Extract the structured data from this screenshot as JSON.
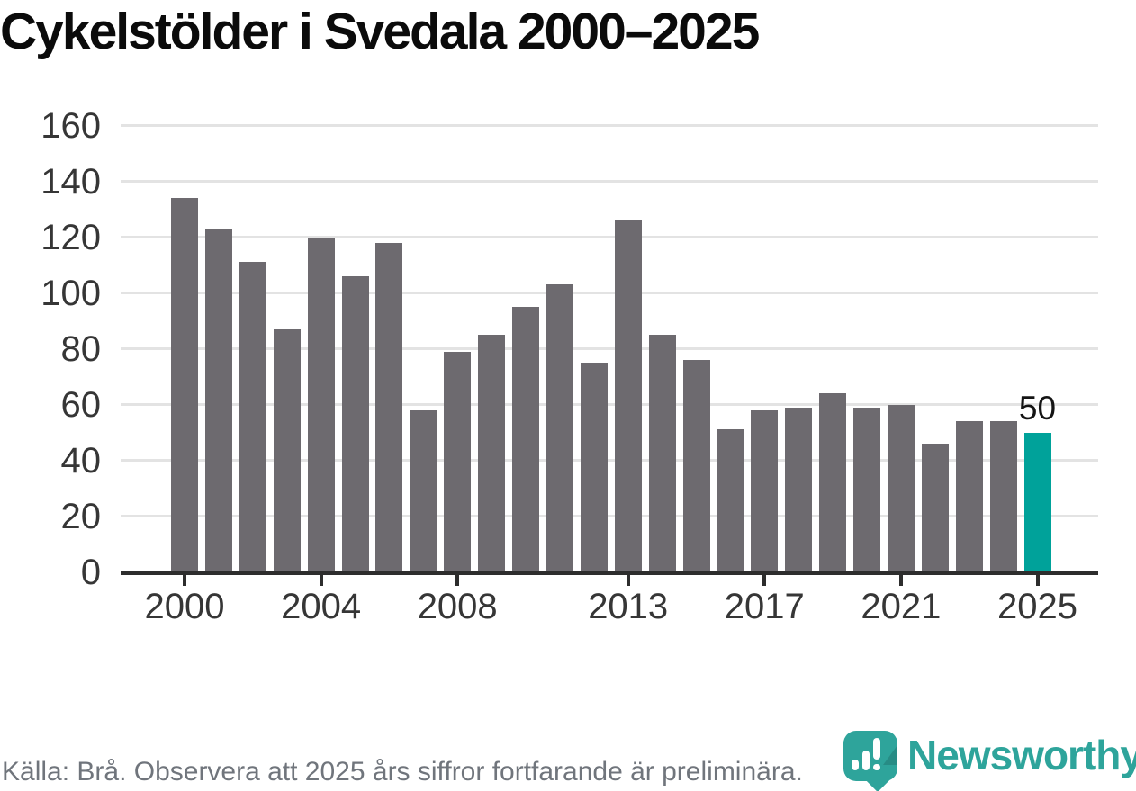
{
  "chart_data": {
    "type": "bar",
    "title": "Cykelstölder i Svedala 2000–2025",
    "categories": [
      2000,
      2001,
      2002,
      2003,
      2004,
      2005,
      2006,
      2007,
      2008,
      2009,
      2010,
      2011,
      2012,
      2013,
      2014,
      2015,
      2016,
      2017,
      2018,
      2019,
      2020,
      2021,
      2022,
      2023,
      2024,
      2025
    ],
    "values": [
      134,
      123,
      111,
      87,
      120,
      106,
      118,
      58,
      79,
      85,
      95,
      103,
      75,
      126,
      85,
      76,
      51,
      58,
      59,
      64,
      59,
      60,
      46,
      54,
      54,
      50
    ],
    "highlight": {
      "index": 25,
      "label": "50",
      "color": "#00a29a"
    },
    "bar_color": "#6d6a6f",
    "xticks": [
      2000,
      2004,
      2008,
      2013,
      2017,
      2021,
      2025
    ],
    "yticks": [
      0,
      20,
      40,
      60,
      80,
      100,
      120,
      140,
      160
    ],
    "ylim": [
      0,
      160
    ],
    "grid": true,
    "legend": "none",
    "grid_color": "#e3e3e3",
    "axis_color": "#2d2d2d",
    "label_color": "#363636",
    "source_note": "Källa: Brå. Observera att 2025 års siffror fortfarande är preliminära."
  },
  "branding": {
    "wordmark": "Newsworthy",
    "logo_icon": "newsworthy-pin-bar-chart-icon",
    "color": "#2ea49b"
  }
}
